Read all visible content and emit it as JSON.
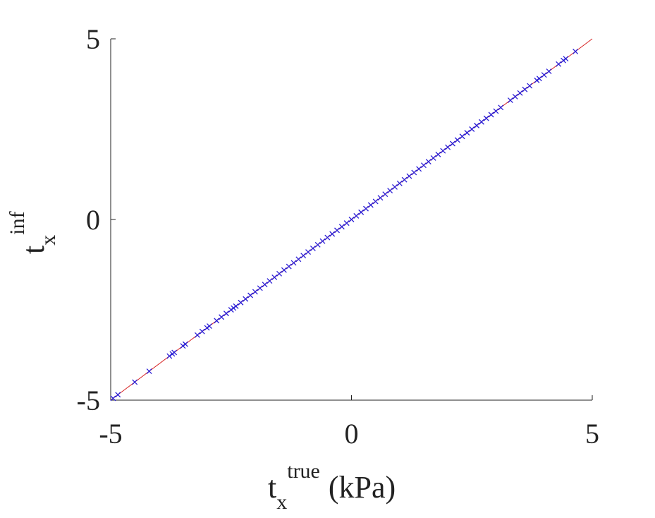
{
  "chart_data": {
    "type": "scatter",
    "xlabel": {
      "base": "t",
      "sub": "x",
      "sup": "true",
      "unit": "(kPa)"
    },
    "ylabel": {
      "base": "t",
      "sub": "x",
      "sup": "inf"
    },
    "xlim": [
      -5,
      5
    ],
    "ylim": [
      -5,
      5
    ],
    "xticks": [
      -5,
      0,
      5
    ],
    "yticks": [
      -5,
      0,
      5
    ],
    "reference_line": {
      "x": [
        -5,
        5
      ],
      "y": [
        -5,
        5
      ],
      "color": "#d62020"
    },
    "series": [
      {
        "color": "#2a1fd6",
        "x": [
          -4.95,
          -4.85,
          -4.5,
          -4.2,
          -3.78,
          -3.72,
          -3.68,
          -3.5,
          -3.45,
          -3.2,
          -3.1,
          -3.0,
          -2.95,
          -2.8,
          -2.7,
          -2.6,
          -2.5,
          -2.45,
          -2.4,
          -2.3,
          -2.2,
          -2.1,
          -2.0,
          -1.9,
          -1.8,
          -1.7,
          -1.6,
          -1.5,
          -1.4,
          -1.3,
          -1.2,
          -1.1,
          -1.0,
          -0.9,
          -0.8,
          -0.7,
          -0.6,
          -0.5,
          -0.4,
          -0.3,
          -0.2,
          -0.1,
          0.0,
          0.1,
          0.2,
          0.3,
          0.4,
          0.5,
          0.6,
          0.7,
          0.8,
          0.9,
          1.0,
          1.1,
          1.2,
          1.3,
          1.4,
          1.5,
          1.6,
          1.7,
          1.8,
          1.9,
          2.0,
          2.1,
          2.2,
          2.3,
          2.4,
          2.5,
          2.6,
          2.7,
          2.8,
          2.9,
          3.0,
          3.1,
          3.3,
          3.4,
          3.5,
          3.6,
          3.7,
          3.85,
          3.9,
          4.0,
          4.1,
          4.3,
          4.4,
          4.45,
          4.65
        ],
        "values": [
          -4.95,
          -4.85,
          -4.5,
          -4.2,
          -3.78,
          -3.72,
          -3.68,
          -3.5,
          -3.45,
          -3.2,
          -3.1,
          -3.0,
          -2.95,
          -2.8,
          -2.7,
          -2.6,
          -2.5,
          -2.45,
          -2.4,
          -2.3,
          -2.2,
          -2.1,
          -2.0,
          -1.9,
          -1.8,
          -1.7,
          -1.6,
          -1.5,
          -1.4,
          -1.3,
          -1.2,
          -1.1,
          -1.0,
          -0.9,
          -0.8,
          -0.7,
          -0.6,
          -0.5,
          -0.4,
          -0.3,
          -0.2,
          -0.1,
          0.0,
          0.1,
          0.2,
          0.3,
          0.4,
          0.5,
          0.6,
          0.7,
          0.8,
          0.9,
          1.0,
          1.1,
          1.2,
          1.3,
          1.4,
          1.5,
          1.6,
          1.7,
          1.8,
          1.9,
          2.0,
          2.1,
          2.2,
          2.3,
          2.4,
          2.5,
          2.6,
          2.7,
          2.8,
          2.9,
          3.0,
          3.1,
          3.3,
          3.4,
          3.5,
          3.6,
          3.7,
          3.85,
          3.9,
          4.0,
          4.1,
          4.3,
          4.4,
          4.45,
          4.65
        ]
      }
    ]
  }
}
